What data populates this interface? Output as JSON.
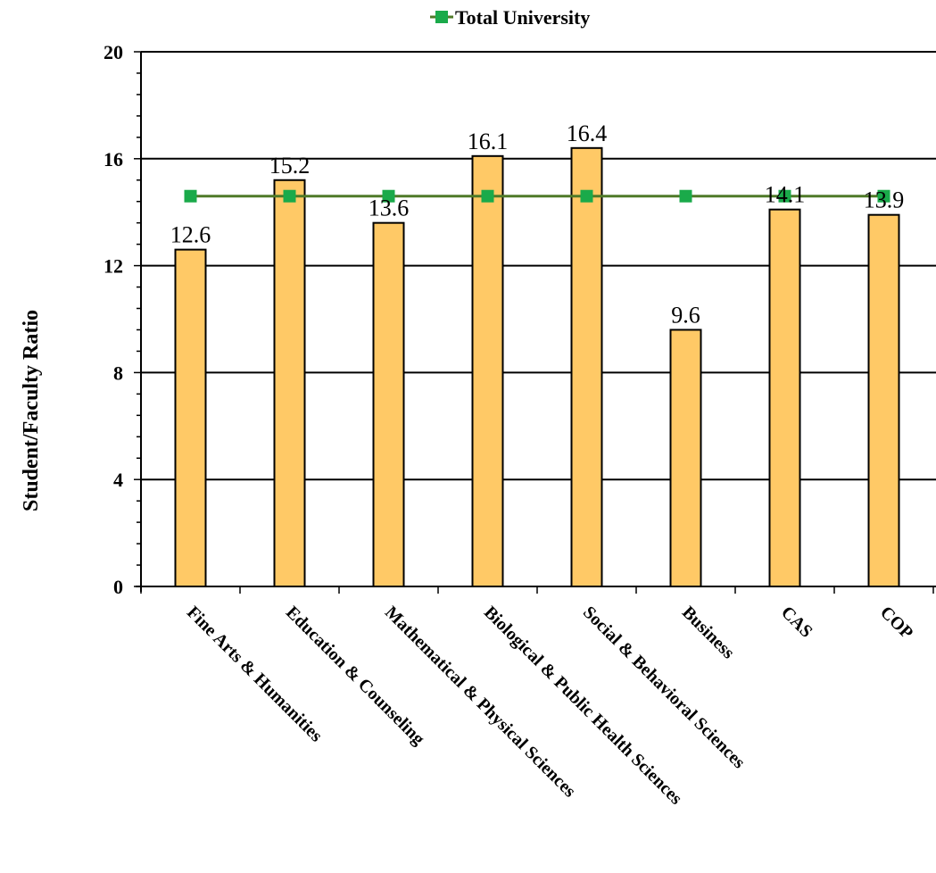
{
  "chart_data": {
    "type": "bar",
    "title": "",
    "xlabel": "",
    "ylabel": "Student/Faculty Ratio",
    "ylim": [
      0,
      20
    ],
    "yticks": [
      0,
      4,
      8,
      12,
      16,
      20
    ],
    "grid": true,
    "legend_position": "top-center",
    "categories": [
      "Fine Arts &  Humanities",
      "Education & Counseling",
      "Mathematical & Physical Sciences",
      "Biological & Public Health Sciences",
      "Social & Behavioral Sciences",
      "Business",
      "CAS",
      "COP"
    ],
    "series": [
      {
        "type": "bar",
        "values": [
          12.6,
          15.2,
          13.6,
          16.1,
          16.4,
          9.6,
          14.1,
          13.9
        ],
        "data_labels": [
          "12.6",
          "15.2",
          "13.6",
          "16.1",
          "16.4",
          "9.6",
          "14.1",
          "13.9"
        ],
        "color": "#FFC966"
      },
      {
        "type": "line",
        "name": "Total University",
        "values": [
          14.6,
          14.6,
          14.6,
          14.6,
          14.6,
          14.6,
          14.6,
          14.6
        ],
        "line_color": "#4F7A28",
        "marker_color": "#1AAA4A"
      }
    ]
  }
}
